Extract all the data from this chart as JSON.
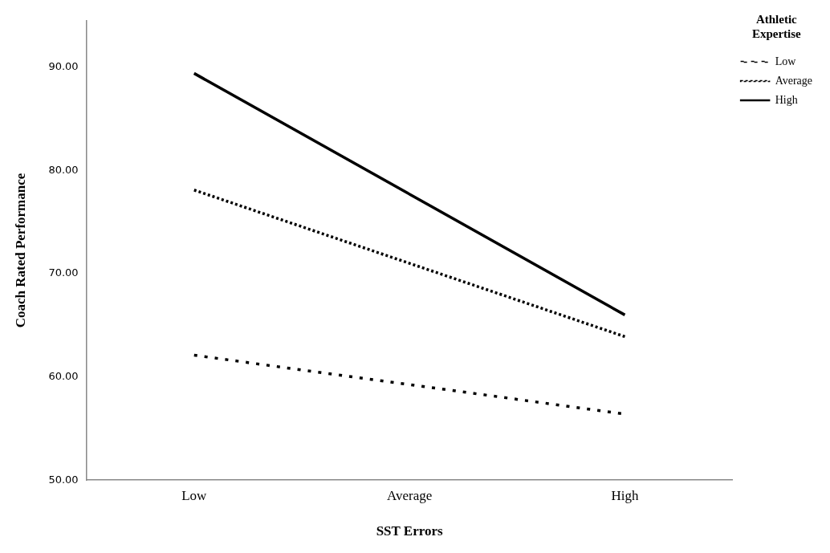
{
  "chart_data": {
    "type": "line",
    "xlabel": "SST Errors",
    "ylabel": "Coach Rated Performance",
    "legend_title": "Athletic Expertise",
    "categories": [
      "Low",
      "Average",
      "High"
    ],
    "series": [
      {
        "name": "Low",
        "color": "#000000",
        "line_style": "dashed",
        "values": [
          62.1,
          null,
          56.4
        ]
      },
      {
        "name": "Average",
        "color": "#000000",
        "line_style": "dotted",
        "values": [
          78.1,
          null,
          63.9
        ]
      },
      {
        "name": "High",
        "color": "#000000",
        "line_style": "solid",
        "values": [
          89.4,
          null,
          66.0
        ]
      }
    ],
    "ylim": [
      50,
      94.5
    ],
    "yticks": [
      {
        "value": 50,
        "label": "50.00"
      },
      {
        "value": 60,
        "label": "60.00"
      },
      {
        "value": 70,
        "label": "70.00"
      },
      {
        "value": 80,
        "label": "80.00"
      },
      {
        "value": 90,
        "label": "90.00"
      }
    ],
    "grid": false,
    "legend": "top right",
    "marker": "none"
  }
}
